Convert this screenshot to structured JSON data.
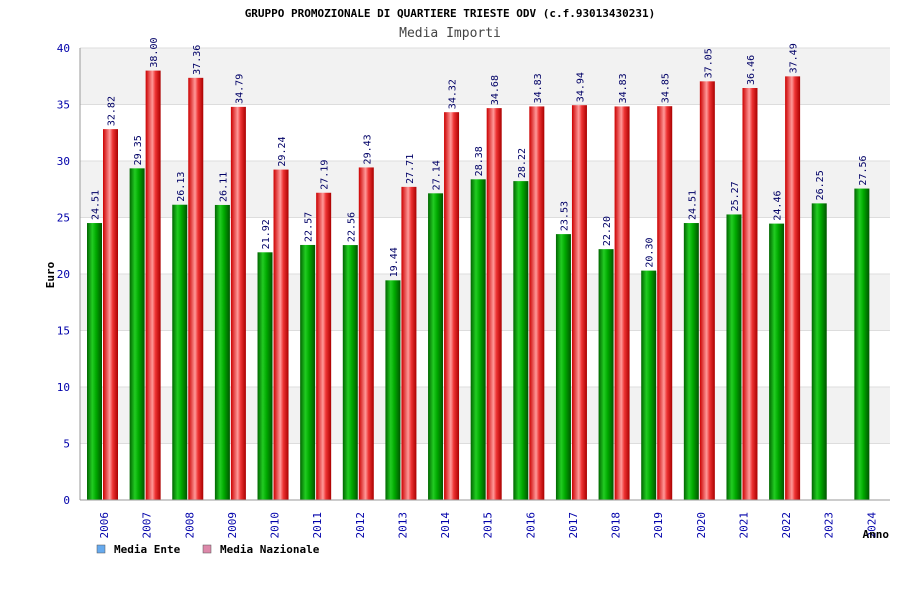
{
  "chart_data": {
    "type": "bar",
    "title": "GRUPPO PROMOZIONALE DI QUARTIERE TRIESTE ODV (c.f.93013430231)",
    "subtitle": "Media Importi",
    "ylabel": "Euro",
    "xlabel": "Anno",
    "ylim": [
      0,
      40
    ],
    "yticks": [
      "0",
      "5",
      "10",
      "15",
      "20",
      "25",
      "30",
      "35",
      "40"
    ],
    "grid": true,
    "legend_position": "bottom-left",
    "categories": [
      "2006",
      "2007",
      "2008",
      "2009",
      "2010",
      "2011",
      "2012",
      "2013",
      "2014",
      "2015",
      "2016",
      "2017",
      "2018",
      "2019",
      "2020",
      "2021",
      "2022",
      "2023",
      "2024"
    ],
    "series": [
      {
        "name": "Media Ente",
        "color": "#00aa00",
        "legend_color": "#66aaee",
        "values": [
          24.51,
          29.35,
          26.13,
          26.11,
          21.92,
          22.57,
          22.56,
          19.44,
          27.14,
          28.38,
          28.22,
          23.53,
          22.2,
          20.3,
          24.51,
          25.27,
          24.46,
          26.25,
          27.56
        ],
        "labels": [
          "24.51",
          "29.35",
          "26.13",
          "26.11",
          "21.92",
          "22.57",
          "22.56",
          "19.44",
          "27.14",
          "28.38",
          "28.22",
          "23.53",
          "22.20",
          "20.30",
          "24.51",
          "25.27",
          "24.46",
          "26.25",
          "27.56"
        ]
      },
      {
        "name": "Media Nazionale",
        "color": "#ee0000",
        "legend_color": "#dd88aa",
        "values": [
          32.82,
          38.0,
          37.36,
          34.79,
          29.24,
          27.19,
          29.43,
          27.71,
          34.32,
          34.68,
          34.83,
          34.94,
          34.83,
          34.85,
          37.05,
          36.46,
          37.49,
          null,
          null
        ],
        "labels": [
          "32.82",
          "38.00",
          "37.36",
          "34.79",
          "29.24",
          "27.19",
          "29.43",
          "27.71",
          "34.32",
          "34.68",
          "34.83",
          "34.94",
          "34.83",
          "34.85",
          "37.05",
          "36.46",
          "37.49",
          "",
          ""
        ]
      }
    ]
  }
}
